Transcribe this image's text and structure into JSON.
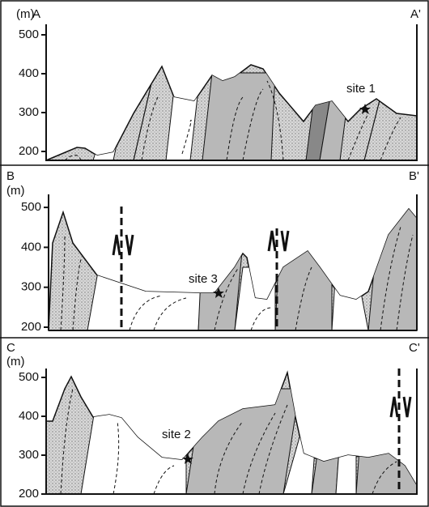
{
  "panels": [
    {
      "unit": "(m)",
      "left": "A",
      "right": "A'",
      "yticks": [
        500,
        400,
        300,
        200
      ],
      "sites": [
        "site 1"
      ]
    },
    {
      "unit": "(m)",
      "left": "B",
      "right": "B'",
      "yticks": [
        500,
        400,
        300,
        200
      ],
      "sites": [
        "site 3"
      ]
    },
    {
      "unit": "(m)",
      "left": "C",
      "right": "C'",
      "yticks": [
        500,
        400,
        300,
        200
      ],
      "sites": [
        "site 2"
      ]
    }
  ]
}
